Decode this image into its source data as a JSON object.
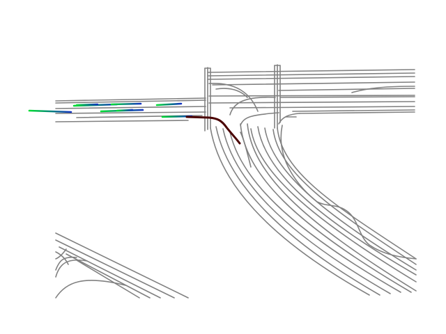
{
  "colors": {
    "background": "#ffffff",
    "lane": "#808080",
    "ego_trajectory": "#4a0000",
    "trajectory_start": "#00dd33",
    "trajectory_end": "#1030c0"
  },
  "scene": {
    "type": "road-network-trajectory-visualization",
    "agent_count": 8,
    "ego_count": 1
  }
}
